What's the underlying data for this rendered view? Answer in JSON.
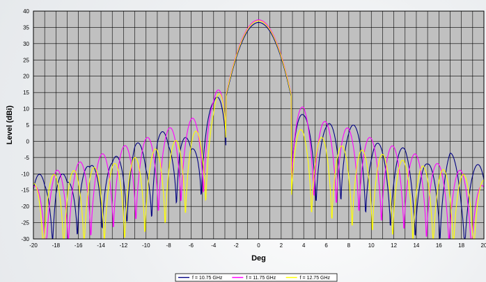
{
  "chart_data": {
    "type": "line",
    "title": "",
    "xlabel": "Deg",
    "ylabel": "Level (dBi)",
    "xlim": [
      -20,
      20
    ],
    "ylim": [
      -30,
      40
    ],
    "x_ticks": [
      -20,
      -18,
      -16,
      -14,
      -12,
      -10,
      -8,
      -6,
      -4,
      -2,
      0,
      2,
      4,
      6,
      8,
      10,
      12,
      14,
      16,
      18,
      20
    ],
    "y_ticks": [
      40,
      35,
      30,
      25,
      20,
      15,
      10,
      5,
      0,
      -5,
      -10,
      -15,
      -20,
      -25,
      -30
    ],
    "grid": true,
    "legend_position": "bottom",
    "plot_background": "#c0c0c0",
    "series": [
      {
        "name": "f = 10.75 GHz",
        "color": "#000080",
        "peak": 36.5,
        "null_spacing_deg": 2.2,
        "x": [
          -20,
          -19,
          -18,
          -17,
          -16,
          -15,
          -14,
          -13,
          -12,
          -11,
          -10,
          -9,
          -8,
          -7,
          -6,
          -5,
          -4,
          -3,
          -2,
          -1,
          0,
          1,
          2,
          3,
          4,
          5,
          6,
          7,
          8,
          9,
          10,
          11,
          12,
          13,
          14,
          15,
          16,
          17,
          18,
          19,
          20
        ],
        "values": [
          -9,
          -11,
          -5.5,
          -12,
          -3.5,
          -8,
          -2,
          -6,
          -1,
          0.8,
          -3,
          5.2,
          1,
          7.2,
          -2,
          9,
          12,
          22,
          32,
          36,
          36.5,
          34,
          27,
          12,
          8,
          6,
          5,
          7,
          5,
          5,
          0,
          -1,
          -2,
          -2,
          -5,
          -7,
          -6,
          -3,
          -9,
          -8,
          -6
        ]
      },
      {
        "name": "f = 11.75 GHz",
        "color": "#ff00ff",
        "peak": 37.3,
        "null_spacing_deg": 2.0,
        "x": [
          -20,
          -19,
          -18,
          -17,
          -16,
          -15,
          -14,
          -13,
          -12,
          -11,
          -10,
          -9,
          -8,
          -7,
          -6,
          -5,
          -4,
          -3,
          -2,
          -1,
          0,
          1,
          2,
          3,
          4,
          5,
          6,
          7,
          8,
          9,
          10,
          11,
          12,
          13,
          14,
          15,
          16,
          17,
          18,
          19,
          20
        ],
        "values": [
          -14,
          -12,
          -9,
          -8,
          -6.5,
          -5,
          -4,
          -2.5,
          -1.5,
          0,
          1,
          2.5,
          4,
          5.5,
          7,
          8,
          12.5,
          25,
          33,
          36.5,
          37.3,
          36,
          28,
          11,
          10.5,
          7,
          6,
          5,
          4,
          2.5,
          1,
          -0.5,
          -1.5,
          -3,
          -4,
          -5.5,
          -7,
          -8,
          -9,
          -11,
          -14
        ]
      },
      {
        "name": "f = 12.75 GHz",
        "color": "#ffff00",
        "peak": 37.0,
        "null_spacing_deg": 1.8,
        "x": [
          -20,
          -19,
          -18,
          -17,
          -16,
          -15,
          -14,
          -13,
          -12,
          -11,
          -10,
          -9,
          -8,
          -7,
          -6,
          -5,
          -4,
          -3,
          -2,
          -1,
          0,
          1,
          2,
          3,
          4,
          5,
          6,
          7,
          8,
          9,
          10,
          11,
          12,
          13,
          14,
          15,
          16,
          17,
          18,
          19,
          20
        ],
        "values": [
          -13,
          -11,
          -10,
          -9,
          -9,
          -8,
          -8,
          -7,
          -6,
          -5,
          -4,
          -2,
          -1,
          1,
          2.5,
          4,
          9.5,
          24,
          33,
          36.5,
          37,
          35.5,
          26,
          5.5,
          3,
          1.5,
          1,
          -1,
          -2,
          -2.5,
          -3.5,
          -4,
          -5,
          -6,
          -7,
          -8,
          -8.5,
          -9,
          -10,
          -11,
          -12
        ]
      }
    ]
  }
}
